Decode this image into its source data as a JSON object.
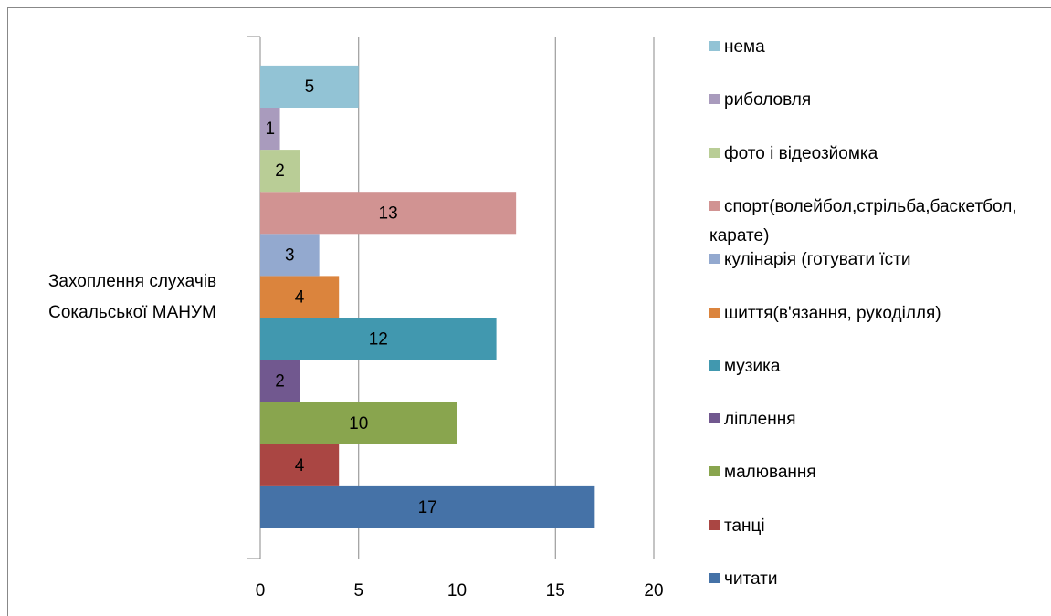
{
  "chart_data": {
    "type": "bar",
    "orientation": "horizontal",
    "categories": [
      "Захоплення слухачів Сокальської МАНУМ"
    ],
    "series": [
      {
        "name": "читати",
        "color": "#4572a7",
        "values": [
          17
        ]
      },
      {
        "name": "танці",
        "color": "#aa4643",
        "values": [
          4
        ]
      },
      {
        "name": "малювання",
        "color": "#89a54e",
        "values": [
          10
        ]
      },
      {
        "name": "ліплення",
        "color": "#71588f",
        "values": [
          2
        ]
      },
      {
        "name": "музика",
        "color": "#4198af",
        "values": [
          12
        ]
      },
      {
        "name": "шиття(в'язання, рукоділля)",
        "color": "#db843d",
        "values": [
          4
        ]
      },
      {
        "name": "кулінарія (готувати їсти",
        "color": "#93a9cf",
        "values": [
          3
        ]
      },
      {
        "name": "спорт(волейбол,стрільба,баскетбол, карате)",
        "color": "#d19392",
        "values": [
          13
        ]
      },
      {
        "name": "фото і відеозйомка",
        "color": "#b9cd96",
        "values": [
          2
        ]
      },
      {
        "name": "риболовля",
        "color": "#a99bbd",
        "values": [
          1
        ]
      },
      {
        "name": "нема",
        "color": "#92c3d5",
        "values": [
          5
        ]
      }
    ],
    "xlim": [
      0,
      20
    ],
    "xticks": [
      0,
      5,
      10,
      15,
      20
    ],
    "grid": true,
    "legend": "right"
  }
}
